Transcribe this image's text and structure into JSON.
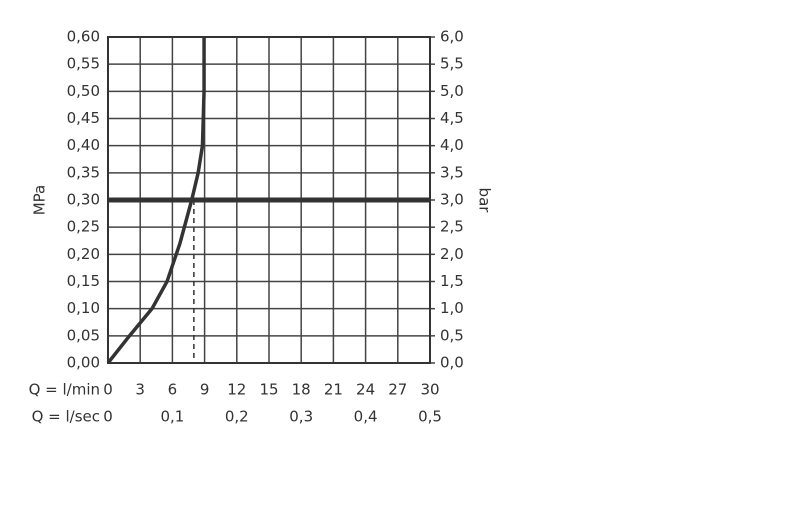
{
  "chart_data": {
    "type": "line",
    "ylabel": "MPa",
    "y2label": "bar",
    "xlabel": "Q = l/min",
    "x2label": "Q = l/sec",
    "xlim": [
      0,
      30
    ],
    "xticks": [
      0,
      3,
      6,
      9,
      12,
      15,
      18,
      21,
      24,
      27,
      30
    ],
    "x2lim": [
      0,
      0.5
    ],
    "x2ticks": [
      0,
      {
        "value": 0.1,
        "label": "0,1"
      },
      {
        "value": 0.2,
        "label": "0,2"
      },
      {
        "value": 0.3,
        "label": "0,3"
      },
      {
        "value": 0.4,
        "label": "0,4"
      },
      {
        "value": 0.5,
        "label": "0,5"
      }
    ],
    "ylim": [
      0,
      0.6
    ],
    "yticks": [
      {
        "value": 0,
        "label": "0,00"
      },
      {
        "value": 0.05,
        "label": "0,05"
      },
      {
        "value": 0.1,
        "label": "0,10"
      },
      {
        "value": 0.15,
        "label": "0,15"
      },
      {
        "value": 0.2,
        "label": "0,20"
      },
      {
        "value": 0.25,
        "label": "0,25"
      },
      {
        "value": 0.3,
        "label": "0,30"
      },
      {
        "value": 0.35,
        "label": "0,35"
      },
      {
        "value": 0.4,
        "label": "0,40"
      },
      {
        "value": 0.45,
        "label": "0,45"
      },
      {
        "value": 0.5,
        "label": "0,50"
      },
      {
        "value": 0.55,
        "label": "0,55"
      },
      {
        "value": 0.6,
        "label": "0,60"
      }
    ],
    "y2lim": [
      0,
      6
    ],
    "y2ticks": [
      {
        "value": 0,
        "label": "0,0"
      },
      {
        "value": 0.5,
        "label": "0,5"
      },
      {
        "value": 1,
        "label": "1,0"
      },
      {
        "value": 1.5,
        "label": "1,5"
      },
      {
        "value": 2,
        "label": "2,0"
      },
      {
        "value": 2.5,
        "label": "2,5"
      },
      {
        "value": 3,
        "label": "3,0"
      },
      {
        "value": 3.5,
        "label": "3,5"
      },
      {
        "value": 4,
        "label": "4,0"
      },
      {
        "value": 4.5,
        "label": "4,5"
      },
      {
        "value": 5,
        "label": "5,0"
      },
      {
        "value": 5.5,
        "label": "5,5"
      },
      {
        "value": 6,
        "label": "6,0"
      }
    ],
    "grid": true,
    "series": [
      {
        "color": "#333333",
        "x": [
          0,
          2,
          4.1,
          5.5,
          6.7,
          7.8,
          8.4,
          8.8,
          8.95,
          8.95
        ],
        "values": [
          0,
          0.05,
          0.1,
          0.15,
          0.22,
          0.3,
          0.35,
          0.4,
          0.5,
          0.6
        ]
      }
    ],
    "hline": 0.3,
    "dropline_x": 8
  }
}
